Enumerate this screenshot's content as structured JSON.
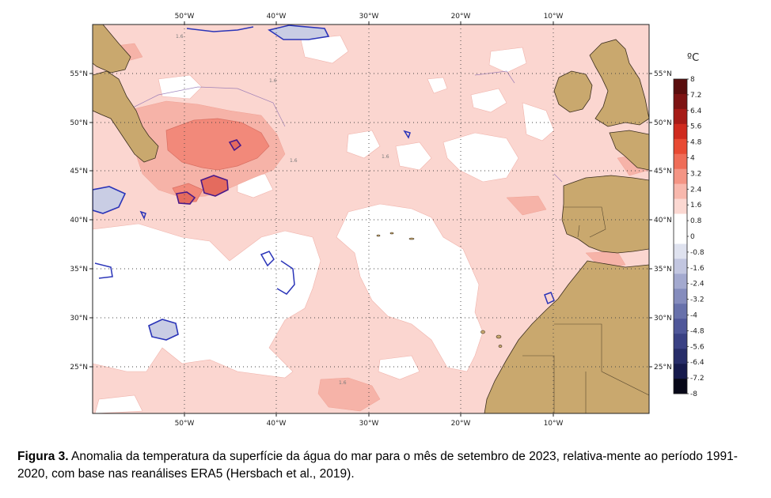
{
  "map": {
    "unit_label": "ºC",
    "lon_ticks": [
      "50°W",
      "40°W",
      "30°W",
      "20°W",
      "10°W"
    ],
    "lat_ticks": [
      "55°N",
      "50°N",
      "45°N",
      "40°N",
      "35°N",
      "30°N",
      "25°N"
    ],
    "contour_labels": [
      "1.6",
      "1.6",
      "1.6",
      "1.6",
      "1.6"
    ],
    "colorbar": {
      "labels": [
        "8",
        "7.2",
        "6.4",
        "5.6",
        "4.8",
        "4",
        "3.2",
        "2.4",
        "1.6",
        "0.8",
        "0",
        "-0.8",
        "-1.6",
        "-2.4",
        "-3.2",
        "-4",
        "-4.8",
        "-5.6",
        "-6.4",
        "-7.2",
        "-8"
      ],
      "colors": [
        "#5a0d0d",
        "#7d1313",
        "#a61b17",
        "#cf2a1e",
        "#e84a33",
        "#ef6d58",
        "#f49585",
        "#f8b8ad",
        "#fbd8d2",
        "#ffffff",
        "#ffffff",
        "#dfe2ef",
        "#c2c6e0",
        "#a3a9cf",
        "#858cbd",
        "#6871ab",
        "#4f5799",
        "#3a4184",
        "#272d69",
        "#161a4c",
        "#070818"
      ]
    },
    "colors": {
      "land": "#c9a86e",
      "ocean_warm": "#fbd6d0",
      "ocean_neutral": "#ffffff",
      "anomaly_high": "#f2897a",
      "anomaly_peak": "#e86a5e",
      "anomaly_cold": "#c9cde4",
      "cold_contour": "#2a34b8"
    }
  },
  "caption": {
    "label": "Figura 3.",
    "text": " Anomalia da temperatura da superfície da água do mar para o mês de setembro de 2023, relativa-mente ao período 1991-2020, com base nas reanálises ERA5 (Hersbach et al., 2019)."
  }
}
